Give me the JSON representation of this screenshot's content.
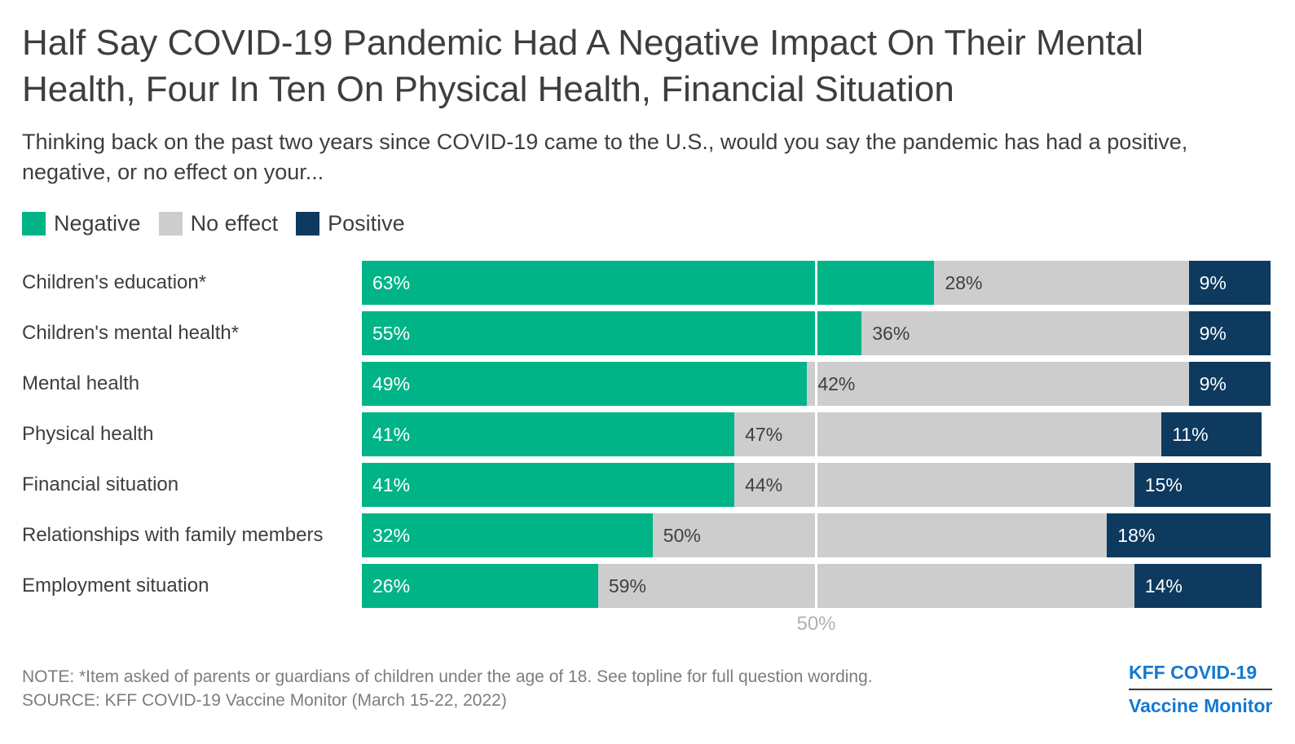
{
  "header": {
    "title": "Half Say COVID-19 Pandemic Had A Negative Impact On Their Mental Health, Four In Ten On Physical Health, Financial Situation",
    "subtitle": "Thinking back on the past two years since COVID-19 came to the U.S., would you say the pandemic has had a positive, negative, or no effect on your..."
  },
  "chart_data": {
    "type": "bar",
    "orientation": "horizontal",
    "stacked": true,
    "categories": [
      "Children's education*",
      "Children's mental health*",
      "Mental health",
      "Physical health",
      "Financial situation",
      "Relationships with family members",
      "Employment situation"
    ],
    "series": [
      {
        "name": "Negative",
        "color": "#00b487",
        "label_color": "#ffffff",
        "values": [
          63,
          55,
          49,
          41,
          41,
          32,
          26
        ]
      },
      {
        "name": "No effect",
        "color": "#cdcdcd",
        "label_color": "#404040",
        "values": [
          28,
          36,
          42,
          47,
          44,
          50,
          59
        ]
      },
      {
        "name": "Positive",
        "color": "#0d3a5e",
        "label_color": "#ffffff",
        "values": [
          9,
          9,
          9,
          11,
          15,
          18,
          14
        ]
      }
    ],
    "xlim": [
      0,
      100
    ],
    "value_suffix": "%",
    "gridline_value": 50,
    "axis_tick_label": "50%",
    "grid": "single-vertical-gridline-at-50",
    "legend_position": "top-left"
  },
  "footer": {
    "note": "NOTE: *Item asked of parents or guardians of children under the age of 18. See topline for full question wording.",
    "source": "SOURCE: KFF COVID-19 Vaccine Monitor (March 15-22, 2022)"
  },
  "logo": {
    "line1": "KFF COVID-19",
    "line2": "Vaccine Monitor",
    "color": "#1478d2"
  }
}
